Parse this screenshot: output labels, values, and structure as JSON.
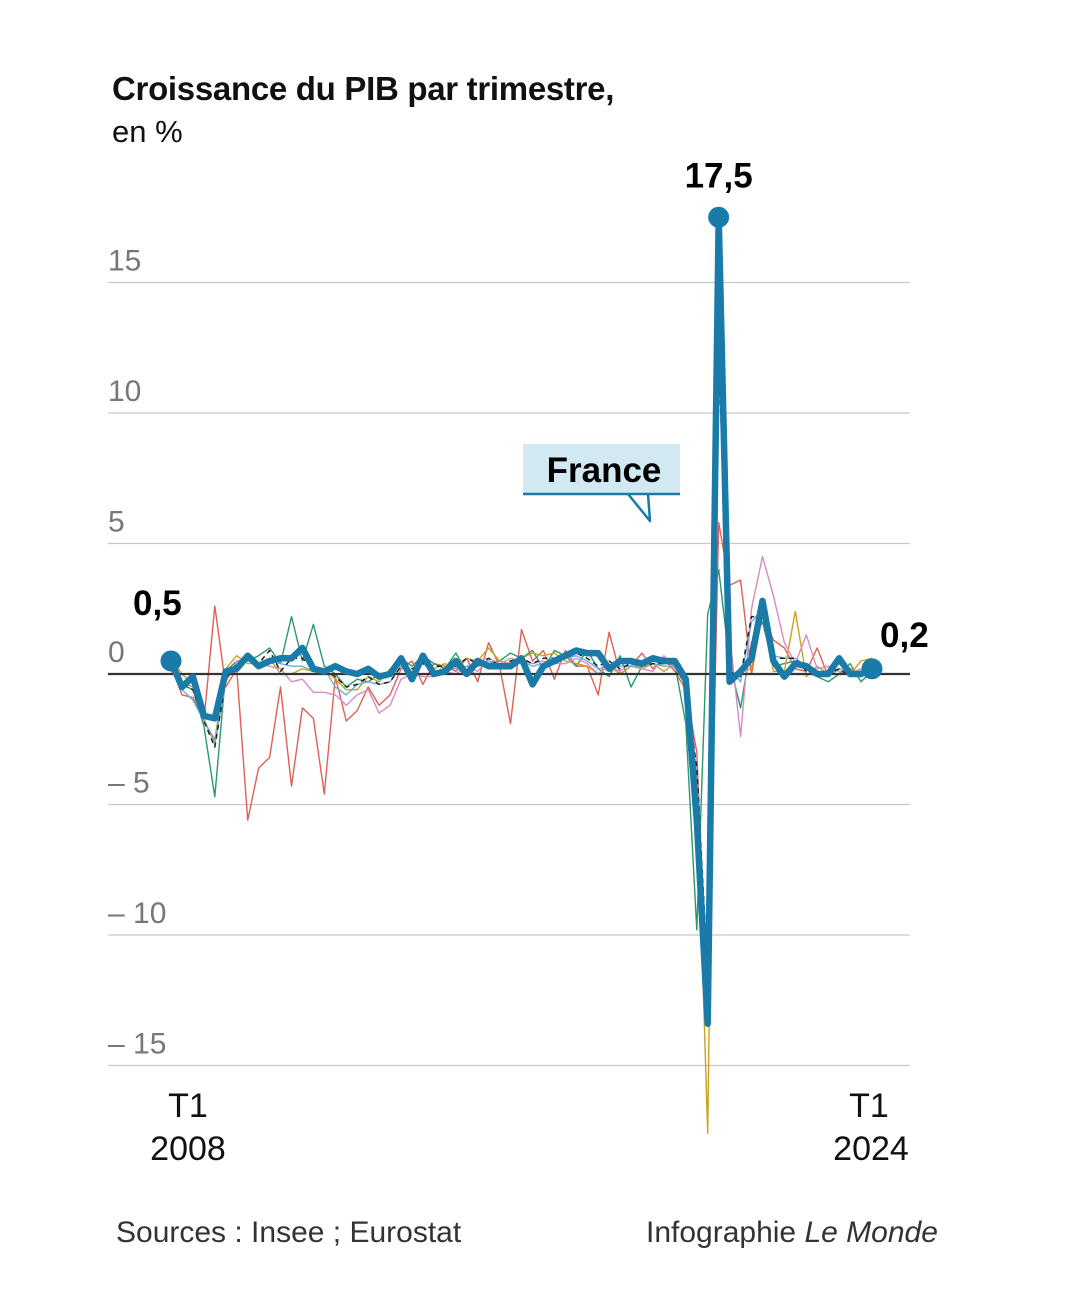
{
  "header": {
    "title": "Croissance du PIB par trimestre,",
    "subtitle": "en %"
  },
  "footer": {
    "sources": "Sources : Insee ; Eurostat",
    "credit_prefix": "Infographie",
    "credit_brand": "Le Monde"
  },
  "colors": {
    "france": "#1a7aa8",
    "france_label_bg": "#d2e8f3",
    "zero_line": "#333333",
    "grid": "#c8c8c8",
    "tick_text": "#777777"
  },
  "chart_data": {
    "type": "line",
    "title": "Croissance du PIB par trimestre,",
    "subtitle": "en %",
    "ylim": [
      -15,
      15
    ],
    "yticks": [
      15,
      10,
      5,
      0,
      -5,
      -10,
      -15
    ],
    "ytick_labels": [
      "15",
      "10",
      "5",
      "0",
      "– 5",
      "– 10",
      "– 15"
    ],
    "x_start_label": [
      "T1",
      "2008"
    ],
    "x_end_label": [
      "T1",
      "2024"
    ],
    "callout_label": "France",
    "annotations": [
      {
        "label": "0,5",
        "index": 0
      },
      {
        "label": "17,5",
        "index": 50
      },
      {
        "label": "0,2",
        "index": 64
      }
    ],
    "series": [
      {
        "name": "France",
        "highlight": true,
        "color": "#1a7aa8",
        "values": [
          0.5,
          -0.5,
          -0.1,
          -1.6,
          -1.7,
          0.1,
          0.2,
          0.7,
          0.3,
          0.5,
          0.6,
          0.6,
          1.0,
          0.2,
          0.1,
          0.3,
          0.1,
          0.0,
          0.2,
          -0.1,
          0.0,
          0.6,
          -0.2,
          0.7,
          0.0,
          0.1,
          0.5,
          0.0,
          0.5,
          0.3,
          0.3,
          0.3,
          0.6,
          -0.4,
          0.3,
          0.5,
          0.7,
          0.9,
          0.8,
          0.8,
          0.2,
          0.5,
          0.5,
          0.4,
          0.6,
          0.5,
          0.5,
          -0.2,
          -5.6,
          -13.4,
          17.5,
          -0.3,
          0.1,
          0.6,
          2.8,
          0.5,
          -0.1,
          0.4,
          0.3,
          0.0,
          0.0,
          0.6,
          0.0,
          0.0,
          0.2
        ]
      },
      {
        "name": "",
        "color": "#e06055",
        "values": [
          0.3,
          -0.8,
          -0.9,
          -1.8,
          2.6,
          -0.5,
          0.2,
          -5.6,
          -3.6,
          -3.2,
          -0.5,
          -4.3,
          -1.3,
          -1.7,
          -4.6,
          -0.1,
          -1.8,
          -1.4,
          -0.5,
          -1.2,
          -0.8,
          0.2,
          0.5,
          -0.4,
          0.4,
          0.3,
          0.1,
          0.6,
          -0.3,
          1.2,
          0.3,
          -1.9,
          1.7,
          0.5,
          0.9,
          -0.2,
          0.9,
          0.3,
          0.3,
          -0.8,
          1.6,
          0.0,
          0.3,
          0.8,
          0.2,
          0.6,
          0.1,
          -0.6,
          -3.0,
          -13.0,
          5.8,
          3.4,
          3.6,
          0.0,
          2.3,
          1.3,
          1.0,
          0.2,
          0.1,
          1.0,
          -0.1,
          0.6,
          0.2,
          0.0,
          0.1
        ]
      },
      {
        "name": "",
        "color": "#2a9a6a",
        "values": [
          0.6,
          -0.4,
          -0.6,
          -2.0,
          -4.7,
          0.1,
          0.5,
          0.5,
          0.7,
          1.0,
          0.4,
          2.2,
          0.5,
          1.9,
          0.3,
          0.0,
          -0.5,
          -0.2,
          -0.3,
          0.0,
          0.0,
          0.6,
          0.3,
          0.7,
          0.4,
          0.2,
          0.8,
          0.1,
          0.3,
          0.4,
          0.5,
          0.8,
          0.6,
          0.9,
          0.2,
          0.9,
          0.7,
          0.3,
          0.9,
          0.2,
          -0.1,
          0.7,
          -0.5,
          0.3,
          0.5,
          0.4,
          0.4,
          -1.9,
          -9.8,
          2.3,
          4.0,
          0.4,
          -1.3,
          1.2,
          2.0,
          0.3,
          0.4,
          0.5,
          0.2,
          -0.1,
          -0.3,
          0.0,
          0.4,
          -0.3,
          0.1
        ]
      },
      {
        "name": "",
        "color": "#c8a220",
        "values": [
          0.6,
          0.0,
          -0.4,
          -1.8,
          -2.5,
          0.2,
          0.7,
          0.4,
          0.4,
          0.6,
          0.0,
          0.0,
          0.2,
          0.1,
          0.2,
          -0.2,
          -0.6,
          -0.6,
          -0.1,
          -0.3,
          0.2,
          0.3,
          0.1,
          0.4,
          0.2,
          0.4,
          0.2,
          0.6,
          0.5,
          1.0,
          0.5,
          0.4,
          0.6,
          0.8,
          0.7,
          0.8,
          0.5,
          0.4,
          0.3,
          0.0,
          0.3,
          0.0,
          0.3,
          0.2,
          0.4,
          0.1,
          0.4,
          -0.3,
          -4.0,
          -17.6,
          14.5,
          0.0,
          0.1,
          0.2,
          2.6,
          0.1,
          0.1,
          2.4,
          -0.1,
          0.3,
          0.0,
          0.4,
          0.0,
          0.5,
          0.6
        ]
      },
      {
        "name": "",
        "color": "#d98ac6",
        "values": [
          0.1,
          -0.3,
          -0.5,
          -1.7,
          -2.7,
          -0.3,
          0.5,
          0.6,
          0.4,
          0.3,
          0.2,
          -0.3,
          -0.2,
          -0.7,
          -0.7,
          -0.8,
          -1.2,
          -0.8,
          -0.6,
          -1.5,
          -1.2,
          -0.2,
          0.0,
          -0.1,
          -0.1,
          0.1,
          0.0,
          0.3,
          0.1,
          0.6,
          0.4,
          0.6,
          0.5,
          0.4,
          0.5,
          0.4,
          0.4,
          0.6,
          0.4,
          0.0,
          0.3,
          0.1,
          0.5,
          0.2,
          0.1,
          0.7,
          0.2,
          -0.2,
          -5.4,
          -12.2,
          16.0,
          1.5,
          -2.4,
          2.5,
          4.5,
          3.0,
          1.2,
          0.4,
          1.5,
          0.2,
          0.3,
          0.1,
          0.0,
          0.2,
          0.3
        ]
      },
      {
        "name": "",
        "color": "#6aaee0",
        "values": [
          0.3,
          -0.6,
          -1.0,
          -1.8,
          -2.6,
          -0.2,
          0.4,
          0.5,
          0.4,
          0.5,
          0.4,
          0.3,
          0.3,
          0.1,
          0.2,
          -0.5,
          -0.8,
          -0.4,
          -0.3,
          -0.4,
          -0.3,
          0.3,
          0.1,
          0.4,
          0.1,
          0.2,
          0.2,
          0.3,
          0.4,
          0.5,
          0.4,
          0.4,
          0.5,
          0.3,
          0.4,
          0.5,
          0.6,
          0.7,
          0.5,
          0.2,
          0.3,
          0.3,
          0.3,
          0.3,
          0.4,
          0.3,
          0.3,
          -0.5,
          -3.8,
          -11.7,
          12.5,
          0.2,
          -0.3,
          2.0,
          2.5,
          0.7,
          0.6,
          0.6,
          0.3,
          0.0,
          -0.1,
          0.2,
          0.0,
          0.1,
          0.3
        ]
      },
      {
        "name": "",
        "color": "#222222",
        "dashed": true,
        "values": [
          0.5,
          -0.4,
          -0.6,
          -1.8,
          -2.8,
          -0.2,
          0.4,
          0.6,
          0.4,
          0.9,
          0.1,
          0.6,
          0.6,
          0.2,
          0.2,
          -0.1,
          -0.5,
          -0.4,
          -0.1,
          -0.4,
          -0.3,
          0.3,
          0.2,
          0.4,
          0.3,
          0.3,
          0.3,
          0.6,
          0.4,
          0.6,
          0.3,
          0.5,
          0.6,
          0.4,
          0.6,
          0.6,
          0.7,
          0.8,
          0.6,
          0.3,
          0.5,
          0.2,
          0.4,
          0.3,
          0.4,
          0.4,
          0.4,
          -0.5,
          -3.6,
          -11.5,
          12.3,
          0.1,
          -0.1,
          2.2,
          2.2,
          0.6,
          0.6,
          0.6,
          0.1,
          -0.1,
          0.0,
          0.2,
          -0.1,
          0.1,
          0.3
        ]
      }
    ]
  }
}
